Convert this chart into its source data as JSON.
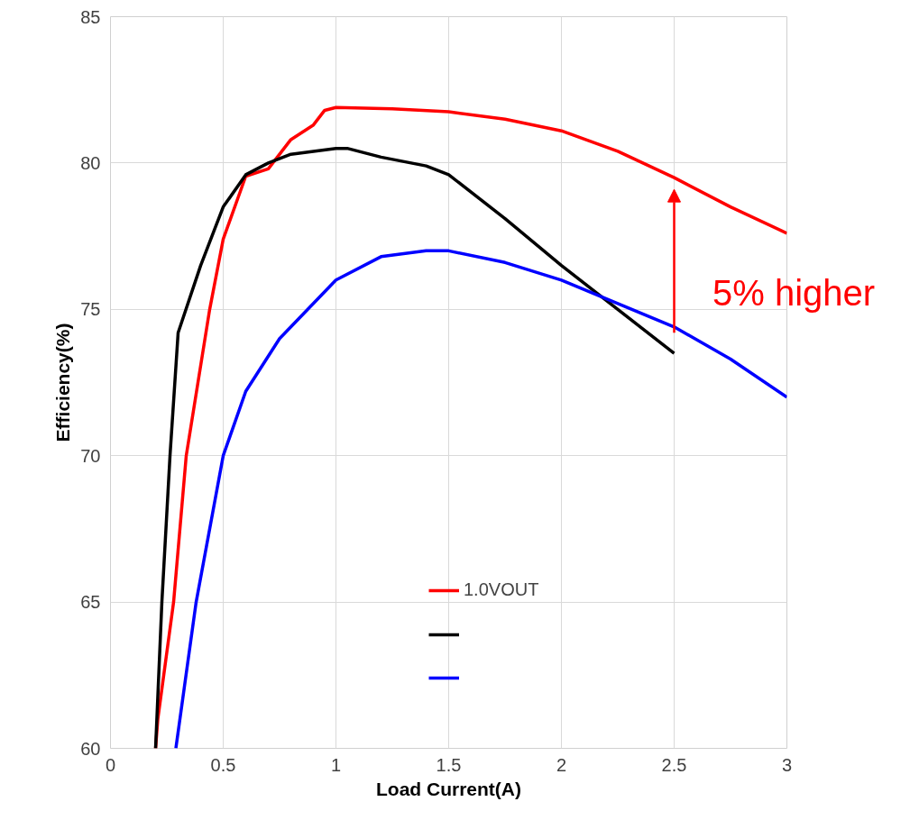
{
  "chart_data": {
    "type": "line",
    "xlabel": "Load Current(A)",
    "ylabel": "Efficiency(%)",
    "xlim": [
      0,
      3
    ],
    "ylim": [
      60,
      85
    ],
    "xticks": [
      0,
      0.5,
      1,
      1.5,
      2,
      2.5,
      3
    ],
    "yticks": [
      60,
      65,
      70,
      75,
      80,
      85
    ],
    "grid": true,
    "legend": "bottom right",
    "line_style": "solid",
    "marker": "none",
    "series": [
      {
        "name": "1.0VOUT",
        "color": "#ff0000",
        "x": [
          0.2,
          0.21,
          0.28,
          0.336,
          0.44,
          0.5,
          0.6,
          0.7,
          0.8,
          0.9,
          0.95,
          1.0,
          1.25,
          1.5,
          1.75,
          2.0,
          2.25,
          2.5,
          2.75,
          3.0
        ],
        "values": [
          60,
          61,
          65,
          70,
          75,
          77.4,
          79.55,
          79.8,
          80.8,
          81.3,
          81.8,
          81.9,
          81.85,
          81.75,
          81.5,
          81.1,
          80.4,
          79.5,
          78.5,
          77.6
        ]
      },
      {
        "color": "#000000",
        "x": [
          0.2,
          0.228,
          0.264,
          0.3,
          0.4,
          0.5,
          0.6,
          0.7,
          0.8,
          1.0,
          1.05,
          1.2,
          1.4,
          1.5,
          1.75,
          2.0,
          2.25,
          2.5
        ],
        "values": [
          60,
          65,
          70,
          74.2,
          76.5,
          78.5,
          79.6,
          80.0,
          80.3,
          80.5,
          80.5,
          80.2,
          79.9,
          79.6,
          78.1,
          76.5,
          75.0,
          73.5
        ]
      },
      {
        "color": "#0000ff",
        "x": [
          0.29,
          0.38,
          0.5,
          0.6,
          0.75,
          1.0,
          1.2,
          1.4,
          1.5,
          1.75,
          2.0,
          2.25,
          2.5,
          2.75,
          3.0
        ],
        "values": [
          60,
          65,
          70,
          72.2,
          74.0,
          76.0,
          76.8,
          77.0,
          77.0,
          76.6,
          76.0,
          75.2,
          74.4,
          73.3,
          72.0
        ]
      }
    ],
    "annotations": [
      "5% higher"
    ]
  }
}
